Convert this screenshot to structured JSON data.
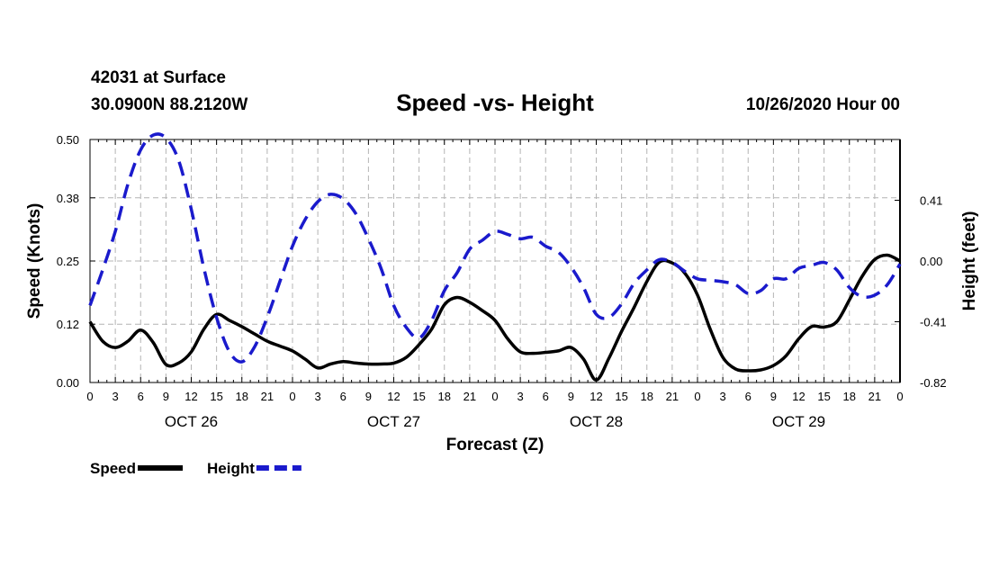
{
  "header": {
    "station": "42031 at Surface",
    "coords": "30.0900N 88.2120W",
    "title": "Speed -vs- Height",
    "run": "10/26/2020 Hour 00"
  },
  "chart_data": {
    "type": "line",
    "title": "Speed -vs- Height",
    "xlabel": "Forecast (Z)",
    "ylabel": "Speed (Knots)",
    "y2label": "Height (feet)",
    "grid": true,
    "x_hours": [
      0,
      3,
      6,
      9,
      12,
      15,
      18,
      21,
      24,
      27,
      30,
      33,
      36,
      39,
      42,
      45,
      48,
      51,
      54,
      57,
      60,
      63,
      66,
      69,
      72,
      75,
      78,
      81,
      84,
      87,
      90,
      93,
      96
    ],
    "x_tick_labels": [
      "0",
      "3",
      "6",
      "9",
      "12",
      "15",
      "18",
      "21",
      "0",
      "3",
      "6",
      "9",
      "12",
      "15",
      "18",
      "21",
      "0",
      "3",
      "6",
      "9",
      "12",
      "15",
      "18",
      "21",
      "0",
      "3",
      "6",
      "9",
      "12",
      "15",
      "18",
      "21",
      "0"
    ],
    "xlim": [
      0,
      96
    ],
    "days": [
      {
        "label": "OCT 26",
        "hour": 12
      },
      {
        "label": "OCT 27",
        "hour": 36
      },
      {
        "label": "OCT 28",
        "hour": 60
      },
      {
        "label": "OCT 29",
        "hour": 84
      }
    ],
    "ylim": [
      0,
      0.5
    ],
    "y_ticks": [
      0.0,
      0.12,
      0.25,
      0.38,
      0.5
    ],
    "y_tick_labels": [
      "0.00",
      "0.12",
      "0.25",
      "0.38",
      "0.50"
    ],
    "y2lim": [
      -0.82,
      0.82
    ],
    "y2_ticks": [
      -0.82,
      -0.41,
      0.0,
      0.41
    ],
    "y2_tick_labels": [
      "-0.82",
      "-0.41",
      "0.00",
      "0.41"
    ],
    "series": [
      {
        "name": "Speed",
        "axis": "left",
        "color": "#000000",
        "style": "solid",
        "x": [
          0,
          1.5,
          3,
          4.5,
          6,
          7.5,
          9,
          10.5,
          12,
          13.5,
          15,
          16.5,
          18,
          19.5,
          21,
          22.5,
          24,
          25.5,
          27,
          28.5,
          30,
          31.5,
          33,
          34.5,
          36,
          37.5,
          39,
          40.5,
          42,
          43.5,
          45,
          46.5,
          48,
          49.5,
          51,
          52.5,
          54,
          55.5,
          57,
          58.5,
          60,
          61.5,
          63,
          64.5,
          66,
          67.5,
          69,
          70.5,
          72,
          73.5,
          75,
          76.5,
          78,
          79.5,
          81,
          82.5,
          84,
          85.5,
          87,
          88.5,
          90,
          91.5,
          93,
          94.5,
          96
        ],
        "values": [
          0.125,
          0.085,
          0.072,
          0.085,
          0.108,
          0.082,
          0.037,
          0.04,
          0.063,
          0.11,
          0.14,
          0.128,
          0.115,
          0.1,
          0.085,
          0.075,
          0.065,
          0.048,
          0.03,
          0.038,
          0.043,
          0.04,
          0.038,
          0.038,
          0.04,
          0.052,
          0.078,
          0.11,
          0.16,
          0.175,
          0.165,
          0.148,
          0.128,
          0.09,
          0.063,
          0.06,
          0.062,
          0.065,
          0.072,
          0.048,
          0.005,
          0.05,
          0.105,
          0.155,
          0.208,
          0.248,
          0.246,
          0.225,
          0.18,
          0.11,
          0.052,
          0.028,
          0.024,
          0.026,
          0.035,
          0.055,
          0.09,
          0.115,
          0.114,
          0.125,
          0.17,
          0.218,
          0.253,
          0.262,
          0.25
        ]
      },
      {
        "name": "Height",
        "axis": "right",
        "color": "#1a1acc",
        "style": "dashed",
        "x": [
          0,
          1.5,
          3,
          4.5,
          6,
          7.5,
          9,
          10.5,
          12,
          13.5,
          15,
          16.5,
          18,
          19.5,
          21,
          22.5,
          24,
          25.5,
          27,
          28.5,
          30,
          31.5,
          33,
          34.5,
          36,
          37.5,
          39,
          40.5,
          42,
          43.5,
          45,
          46.5,
          48,
          49.5,
          51,
          52.5,
          54,
          55.5,
          57,
          58.5,
          60,
          61.5,
          63,
          64.5,
          66,
          67.5,
          69,
          70.5,
          72,
          73.5,
          75,
          76.5,
          78,
          79.5,
          81,
          82.5,
          84,
          85.5,
          87,
          88.5,
          90,
          91.5,
          93,
          94.5,
          96
        ],
        "values": [
          -0.3,
          -0.06,
          0.2,
          0.52,
          0.75,
          0.85,
          0.83,
          0.68,
          0.35,
          -0.05,
          -0.38,
          -0.61,
          -0.68,
          -0.58,
          -0.38,
          -0.14,
          0.1,
          0.28,
          0.4,
          0.45,
          0.42,
          0.32,
          0.15,
          -0.05,
          -0.3,
          -0.45,
          -0.52,
          -0.4,
          -0.2,
          -0.08,
          0.08,
          0.14,
          0.2,
          0.18,
          0.15,
          0.16,
          0.1,
          0.06,
          -0.04,
          -0.18,
          -0.36,
          -0.38,
          -0.29,
          -0.15,
          -0.06,
          0.01,
          -0.01,
          -0.07,
          -0.12,
          -0.13,
          -0.14,
          -0.16,
          -0.22,
          -0.2,
          -0.12,
          -0.12,
          -0.05,
          -0.03,
          -0.01,
          -0.06,
          -0.18,
          -0.24,
          -0.23,
          -0.16,
          -0.02
        ]
      }
    ],
    "legend": [
      {
        "label": "Speed",
        "color": "#000000",
        "style": "solid"
      },
      {
        "label": "Height",
        "color": "#1a1acc",
        "style": "dashed"
      }
    ]
  }
}
